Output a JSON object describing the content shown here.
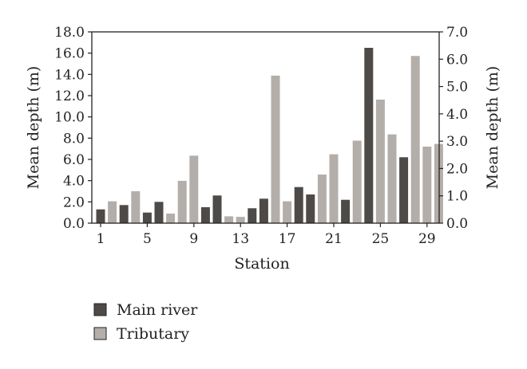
{
  "chart_data": {
    "type": "bar",
    "x": [
      1,
      2,
      3,
      4,
      5,
      6,
      7,
      8,
      9,
      10,
      11,
      12,
      13,
      14,
      15,
      16,
      17,
      18,
      19,
      20,
      21,
      22,
      23,
      24,
      25,
      26,
      27,
      28,
      29,
      30
    ],
    "x_tick_labels": [
      "1",
      "5",
      "9",
      "13",
      "17",
      "21",
      "25",
      "29"
    ],
    "x_tick_values": [
      1,
      5,
      9,
      13,
      17,
      21,
      25,
      29
    ],
    "xlabel": "Station",
    "ylabel_left": "Mean depth (m)",
    "ylabel_right": "Mean depth (m)",
    "ylim_left": [
      0,
      18
    ],
    "ylim_right": [
      0,
      7
    ],
    "y_ticks_left": [
      "0.0",
      "2.0",
      "4.0",
      "6.0",
      "8.0",
      "10.0",
      "12.0",
      "14.0",
      "16.0",
      "18.0"
    ],
    "y_ticks_right": [
      "0.0",
      "1.0",
      "2.0",
      "3.0",
      "4.0",
      "5.0",
      "6.0",
      "7.0"
    ],
    "grid": false,
    "legend_position": "bottom-left",
    "series": [
      {
        "name": "Main river",
        "axis": "left",
        "color": "#4d4a47",
        "values": [
          1.3,
          null,
          1.7,
          null,
          1.0,
          2.0,
          null,
          null,
          null,
          1.5,
          2.6,
          null,
          null,
          1.4,
          2.3,
          null,
          null,
          3.4,
          2.7,
          null,
          null,
          2.2,
          null,
          16.5,
          null,
          null,
          6.2,
          null,
          null,
          null
        ]
      },
      {
        "name": "Tributary",
        "axis": "right",
        "color": "#b3aea9",
        "values": [
          null,
          0.8,
          null,
          1.17,
          null,
          null,
          0.35,
          1.55,
          2.47,
          null,
          null,
          0.25,
          0.23,
          null,
          null,
          5.4,
          0.8,
          null,
          null,
          1.78,
          2.52,
          null,
          3.02,
          null,
          4.52,
          3.25,
          null,
          6.12,
          2.8,
          2.9
        ]
      }
    ]
  }
}
